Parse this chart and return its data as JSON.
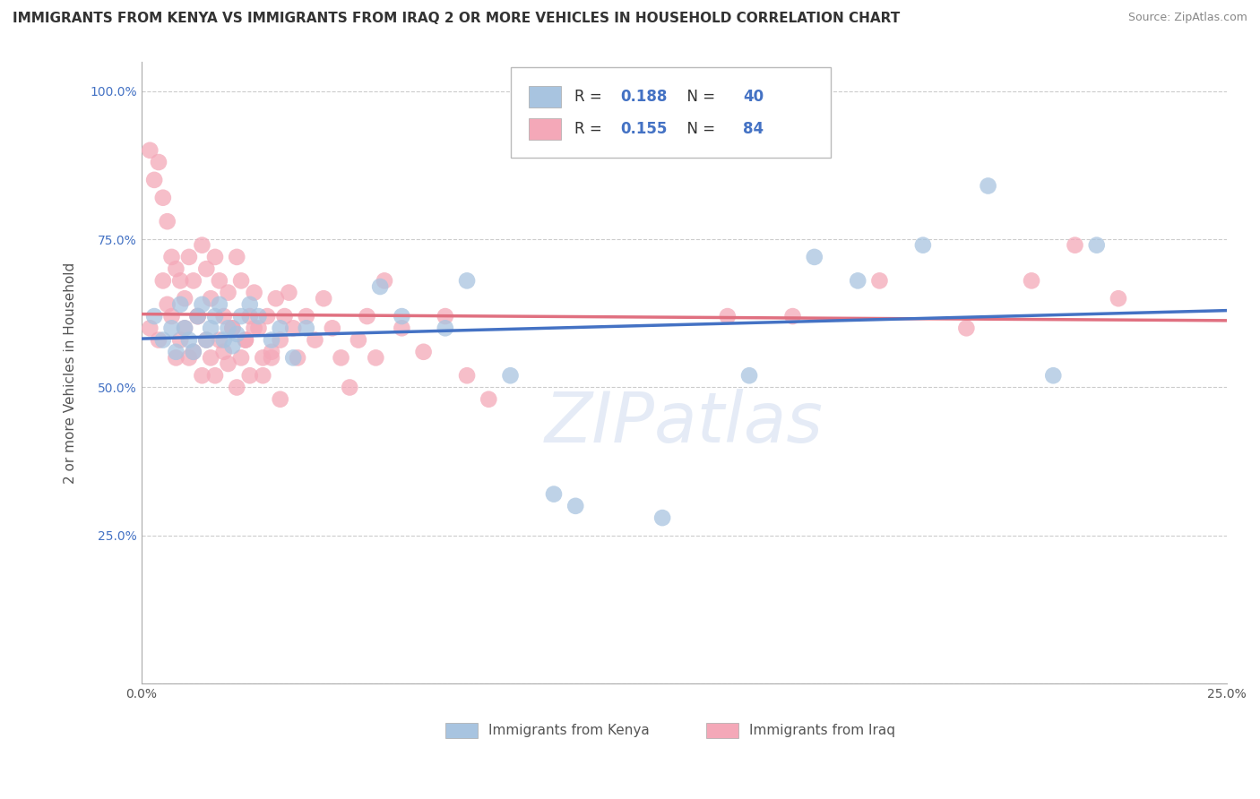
{
  "title": "IMMIGRANTS FROM KENYA VS IMMIGRANTS FROM IRAQ 2 OR MORE VEHICLES IN HOUSEHOLD CORRELATION CHART",
  "source": "Source: ZipAtlas.com",
  "ylabel": "2 or more Vehicles in Household",
  "xlim": [
    0.0,
    0.25
  ],
  "ylim": [
    0.0,
    1.05
  ],
  "xticks": [
    0.0,
    0.05,
    0.1,
    0.15,
    0.2,
    0.25
  ],
  "xticklabels": [
    "0.0%",
    "",
    "",
    "",
    "",
    "25.0%"
  ],
  "yticks": [
    0.0,
    0.25,
    0.5,
    0.75,
    1.0
  ],
  "yticklabels": [
    "",
    "25.0%",
    "50.0%",
    "75.0%",
    "100.0%"
  ],
  "kenya_R": 0.188,
  "kenya_N": 40,
  "iraq_R": 0.155,
  "iraq_N": 84,
  "kenya_color": "#a8c4e0",
  "iraq_color": "#f4a8b8",
  "kenya_line_color": "#4472c4",
  "iraq_line_color": "#e07080",
  "title_fontsize": 11,
  "axis_label_fontsize": 11,
  "tick_fontsize": 10,
  "legend_fontsize": 12,
  "watermark": "ZIPatlas",
  "kenya_x": [
    0.003,
    0.005,
    0.007,
    0.008,
    0.009,
    0.01,
    0.011,
    0.012,
    0.013,
    0.014,
    0.015,
    0.016,
    0.017,
    0.018,
    0.019,
    0.02,
    0.021,
    0.022,
    0.023,
    0.025,
    0.027,
    0.03,
    0.032,
    0.035,
    0.038,
    0.055,
    0.06,
    0.07,
    0.075,
    0.085,
    0.095,
    0.1,
    0.12,
    0.14,
    0.155,
    0.165,
    0.18,
    0.195,
    0.21,
    0.22
  ],
  "kenya_y": [
    0.62,
    0.58,
    0.6,
    0.56,
    0.64,
    0.6,
    0.58,
    0.56,
    0.62,
    0.64,
    0.58,
    0.6,
    0.62,
    0.64,
    0.58,
    0.6,
    0.57,
    0.59,
    0.62,
    0.64,
    0.62,
    0.58,
    0.6,
    0.55,
    0.6,
    0.67,
    0.62,
    0.6,
    0.68,
    0.52,
    0.32,
    0.3,
    0.28,
    0.52,
    0.72,
    0.68,
    0.74,
    0.84,
    0.52,
    0.74
  ],
  "iraq_x": [
    0.002,
    0.003,
    0.004,
    0.005,
    0.006,
    0.007,
    0.008,
    0.009,
    0.01,
    0.011,
    0.012,
    0.013,
    0.014,
    0.015,
    0.016,
    0.017,
    0.018,
    0.019,
    0.02,
    0.021,
    0.022,
    0.023,
    0.024,
    0.025,
    0.026,
    0.027,
    0.028,
    0.029,
    0.03,
    0.031,
    0.032,
    0.033,
    0.034,
    0.035,
    0.036,
    0.038,
    0.04,
    0.042,
    0.044,
    0.046,
    0.048,
    0.05,
    0.052,
    0.054,
    0.056,
    0.06,
    0.065,
    0.07,
    0.075,
    0.08,
    0.002,
    0.004,
    0.006,
    0.008,
    0.01,
    0.012,
    0.014,
    0.016,
    0.018,
    0.02,
    0.022,
    0.024,
    0.026,
    0.028,
    0.03,
    0.032,
    0.005,
    0.007,
    0.009,
    0.011,
    0.013,
    0.015,
    0.017,
    0.019,
    0.021,
    0.023,
    0.025,
    0.135,
    0.15,
    0.17,
    0.19,
    0.205,
    0.215,
    0.225
  ],
  "iraq_y": [
    0.9,
    0.85,
    0.88,
    0.82,
    0.78,
    0.72,
    0.7,
    0.68,
    0.65,
    0.72,
    0.68,
    0.62,
    0.74,
    0.7,
    0.65,
    0.72,
    0.68,
    0.62,
    0.66,
    0.6,
    0.72,
    0.68,
    0.58,
    0.62,
    0.66,
    0.6,
    0.55,
    0.62,
    0.56,
    0.65,
    0.58,
    0.62,
    0.66,
    0.6,
    0.55,
    0.62,
    0.58,
    0.65,
    0.6,
    0.55,
    0.5,
    0.58,
    0.62,
    0.55,
    0.68,
    0.6,
    0.56,
    0.62,
    0.52,
    0.48,
    0.6,
    0.58,
    0.64,
    0.55,
    0.6,
    0.56,
    0.52,
    0.55,
    0.58,
    0.54,
    0.5,
    0.58,
    0.6,
    0.52,
    0.55,
    0.48,
    0.68,
    0.62,
    0.58,
    0.55,
    0.62,
    0.58,
    0.52,
    0.56,
    0.6,
    0.55,
    0.52,
    0.62,
    0.62,
    0.68,
    0.6,
    0.68,
    0.74,
    0.65
  ]
}
